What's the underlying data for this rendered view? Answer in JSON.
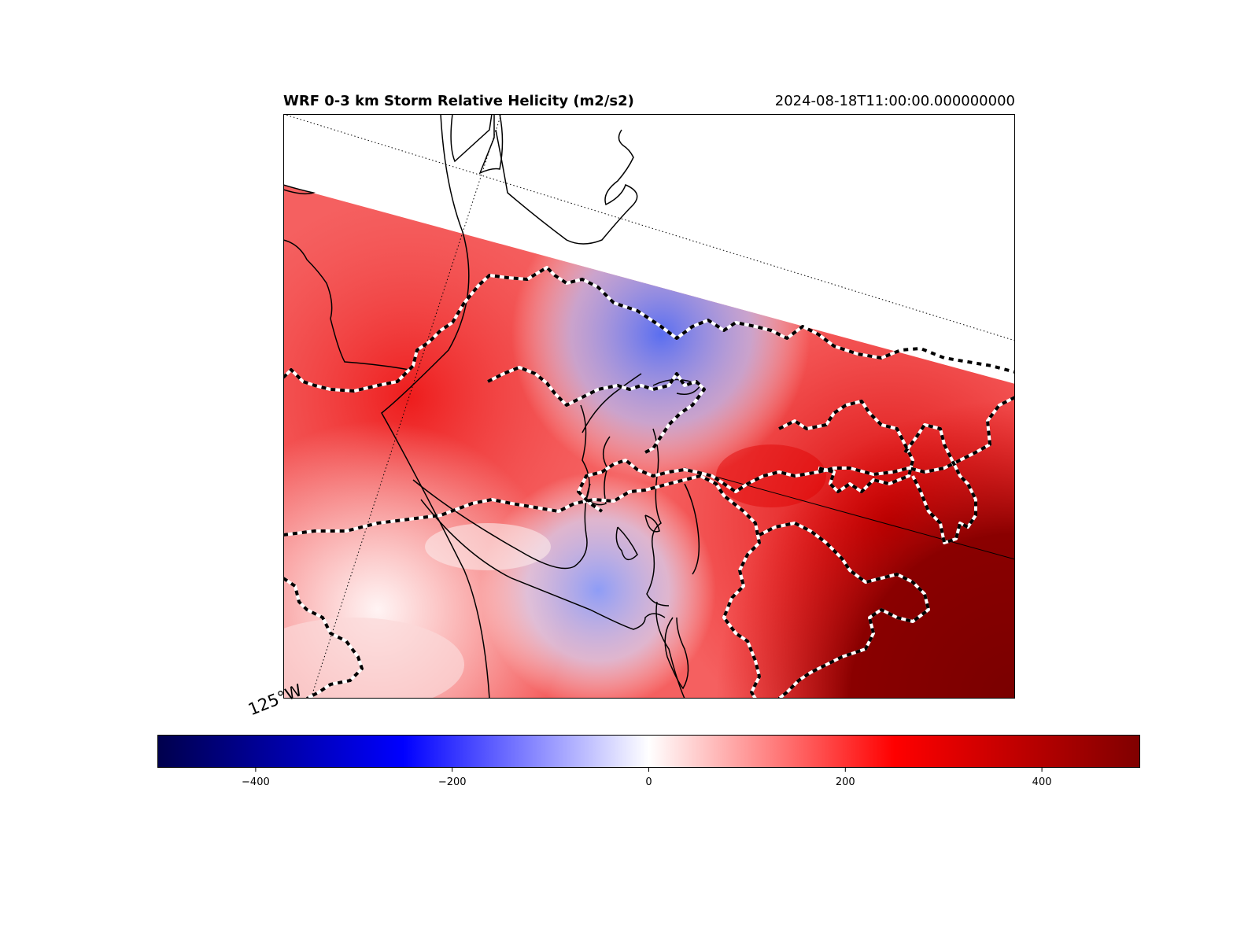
{
  "header": {
    "title": "WRF 0-3 km Storm Relative Helicity (m2/s2)",
    "valid_time": "2024-08-18T11:00:00.000000000"
  },
  "map": {
    "longitude_label": "125°W",
    "field": "0-3 km storm relative helicity",
    "colormap": "seismic",
    "colors": {
      "min": "#00004d",
      "neg": "#0000ff",
      "zero": "#ffffff",
      "pos": "#ff0000",
      "max": "#800000"
    }
  },
  "colorbar": {
    "range": [
      -500,
      500
    ],
    "ticks": [
      "−400",
      "−200",
      "0",
      "200",
      "400"
    ],
    "tick_values": [
      -400,
      -200,
      0,
      200,
      400
    ]
  }
}
